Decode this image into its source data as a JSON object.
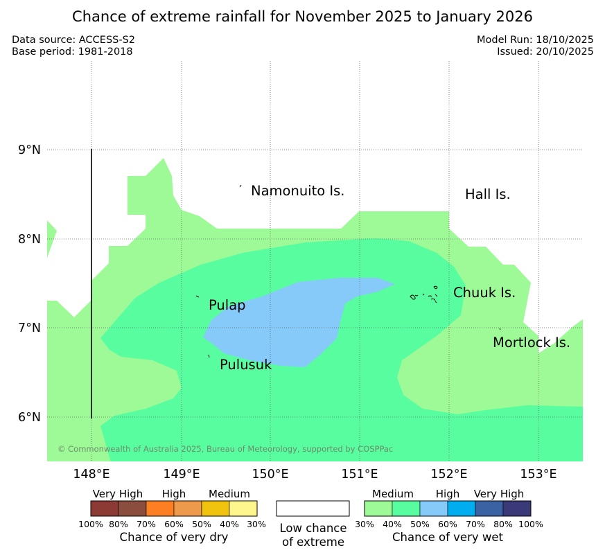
{
  "title": "Chance of extreme rainfall for November 2025 to January 2026",
  "meta": {
    "data_source": "Data source: ACCESS-S2",
    "base_period": "Base period: 1981-2018",
    "model_run": "Model Run: 18/10/2025",
    "issued": "Issued: 20/10/2025"
  },
  "map": {
    "lon_ticks": [
      "148°E",
      "149°E",
      "150°E",
      "151°E",
      "152°E",
      "153°E"
    ],
    "lat_ticks": [
      "9°N",
      "8°N",
      "7°N",
      "6°N"
    ],
    "places": [
      "Namonuito Is.",
      "Hall Is.",
      "Pulap",
      "Chuuk Is.",
      "Mortlock Is.",
      "Pulusuk"
    ],
    "copyright": "© Commonwealth of Australia 2025, Bureau of Meteorology, supported by COSPPac"
  },
  "legend": {
    "dry": {
      "categories": [
        "Very High",
        "High",
        "Medium"
      ],
      "ticks": [
        "100%",
        "80%",
        "70%",
        "60%",
        "50%",
        "40%",
        "30%"
      ],
      "colors": [
        "#8b3a34",
        "#8b4e3e",
        "#fd7f24",
        "#ee9a4c",
        "#f0c40e",
        "#fff68e"
      ],
      "label": "Chance of very dry"
    },
    "low": {
      "line1": "Low chance",
      "line2": "of extreme"
    },
    "wet": {
      "categories": [
        "Medium",
        "High",
        "Very High"
      ],
      "ticks": [
        "30%",
        "40%",
        "50%",
        "60%",
        "70%",
        "80%",
        "100%"
      ],
      "colors": [
        "#9dfa96",
        "#58fd9f",
        "#86cafa",
        "#00aeef",
        "#3b62a2",
        "#3b3a78"
      ],
      "label": "Chance of very wet"
    }
  },
  "colors": {
    "medium_30_40": "#9dfa96",
    "medium_40_50": "#58fd9f",
    "high_50_60": "#86cafa"
  }
}
